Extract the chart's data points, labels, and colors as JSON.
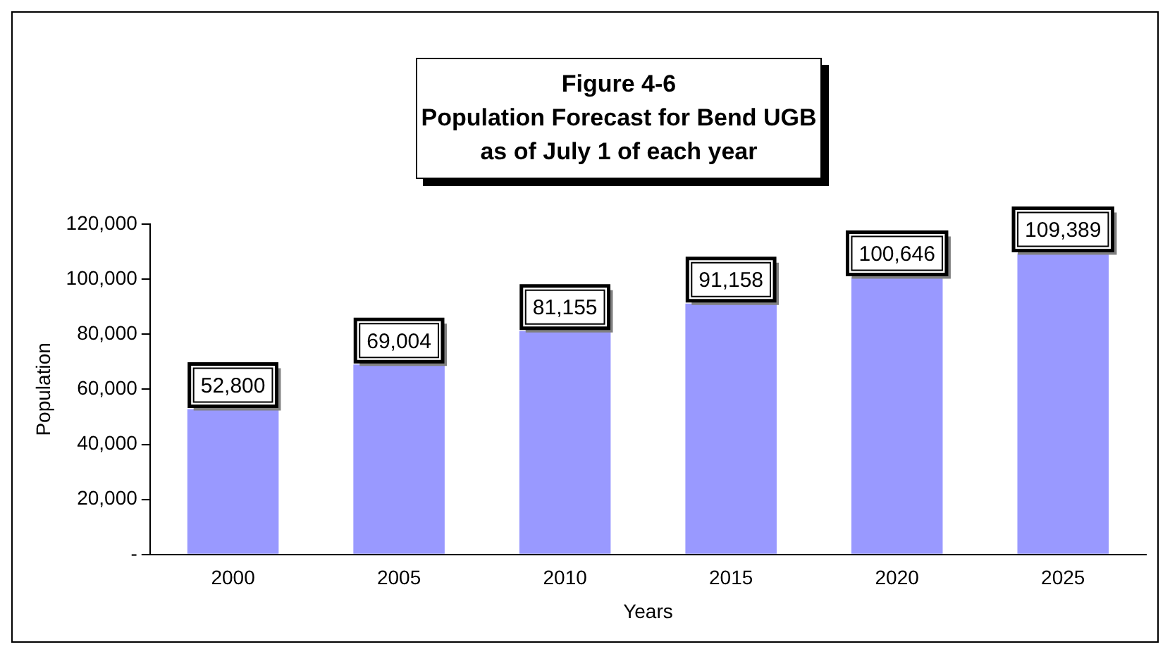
{
  "chart_data": {
    "type": "bar",
    "title": "Figure 4-6\nPopulation Forecast for Bend UGB\nas of July 1 of each year",
    "xlabel": "Years",
    "ylabel": "Population",
    "categories": [
      "2000",
      "2005",
      "2010",
      "2015",
      "2020",
      "2025"
    ],
    "values": [
      52800,
      69004,
      81155,
      91158,
      100646,
      109389
    ],
    "value_labels": [
      "52,800",
      "69,004",
      "81,155",
      "91,158",
      "100,646",
      "109,389"
    ],
    "color": "#9999ff",
    "ylim": [
      0,
      120000
    ],
    "yticks": [
      {
        "value": 0,
        "label": "-"
      },
      {
        "value": 20000,
        "label": "20,000"
      },
      {
        "value": 40000,
        "label": "40,000"
      },
      {
        "value": 60000,
        "label": "60,000"
      },
      {
        "value": 80000,
        "label": "80,000"
      },
      {
        "value": 100000,
        "label": "100,000"
      },
      {
        "value": 120000,
        "label": "120,000"
      }
    ],
    "grid": false,
    "legend": false
  }
}
